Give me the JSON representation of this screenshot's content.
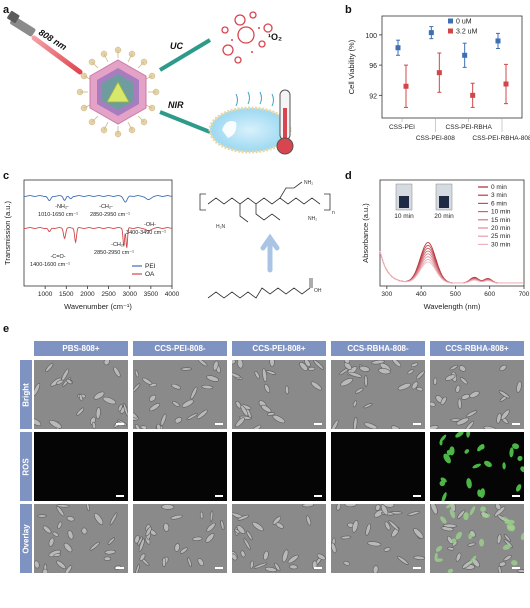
{
  "panels": {
    "a": {
      "letter": "a",
      "laser_label": "808 nm",
      "uc_label": "UC",
      "nir_label": "NIR",
      "singlet_oxygen_label": "¹O₂"
    },
    "b": {
      "letter": "b"
    },
    "c": {
      "letter": "c"
    },
    "d": {
      "letter": "d"
    },
    "e": {
      "letter": "e"
    }
  },
  "chart_b": {
    "type": "scatter",
    "ylabel": "Cell Viability (%)",
    "yticks": [
      92,
      96,
      100
    ],
    "ylim": [
      89,
      102.5
    ],
    "categories": [
      "CSS-PEI",
      "CSS-PEI-808",
      "CSS-PEI-RBHA",
      "CSS-PEI-RBHA-808"
    ],
    "series": [
      {
        "name": "0 uM",
        "color": "#3d6fb6",
        "values": [
          98.3,
          100.3,
          97.3,
          99.2
        ],
        "errors": [
          1.0,
          0.8,
          1.6,
          1.0
        ]
      },
      {
        "name": "3.2 uM",
        "color": "#d0474a",
        "values": [
          93.2,
          95.0,
          92.0,
          93.5
        ],
        "errors": [
          2.8,
          2.6,
          1.6,
          2.6
        ]
      }
    ]
  },
  "chart_c": {
    "type": "line",
    "xlabel": "Wavenumber (cm⁻¹)",
    "ylabel": "Transmission (a.u.)",
    "xticks": [
      1000,
      1500,
      2000,
      2500,
      3000,
      3500,
      4000
    ],
    "xlim": [
      500,
      4000
    ],
    "legend": [
      "PEI",
      "OA"
    ],
    "colors": {
      "PEI": "#3d6fb6",
      "OA": "#d0474a"
    },
    "annotations": {
      "nh2": "-NH₂-",
      "nh2_range": "1010-1650 cm⁻¹",
      "ch2_top": "-CH₂-",
      "ch2_top_range": "2850-2950 cm⁻¹",
      "oh": "-OH-",
      "oh_range": "3400-3490 cm⁻¹",
      "co": "-C=O-",
      "co_range": "1400-1600 cm⁻¹",
      "ch2_bottom": "-CH₂-",
      "ch2_bottom_range": "2850-2950 cm⁻¹"
    },
    "structure_labels": {
      "nh2": "NH₂",
      "nh2_b": "NH₂",
      "h2n": "H₂N",
      "n_sub": "n",
      "oh": "OH"
    }
  },
  "chart_d": {
    "type": "line",
    "xlabel": "Wavelength (nm)",
    "ylabel": "Absorbance (a.u.)",
    "xticks": [
      300,
      400,
      500,
      600,
      700
    ],
    "xlim": [
      280,
      700
    ],
    "legend": [
      "0 min",
      "3 min",
      "6 min",
      "10 min",
      "15 min",
      "20 min",
      "25 min",
      "30 min"
    ],
    "vial_labels": [
      "10 min",
      "20 min"
    ],
    "peak_scale": [
      1.0,
      0.93,
      0.86,
      0.79,
      0.72,
      0.65,
      0.58,
      0.52
    ]
  },
  "grid_e": {
    "columns": [
      "PBS-808+",
      "CCS-PEI-808-",
      "CCS-PEI-808+",
      "CCS-RBHA-808-",
      "CCS-RBHA-808+"
    ],
    "rows": [
      "Bright",
      "ROS",
      "Overlay"
    ]
  }
}
